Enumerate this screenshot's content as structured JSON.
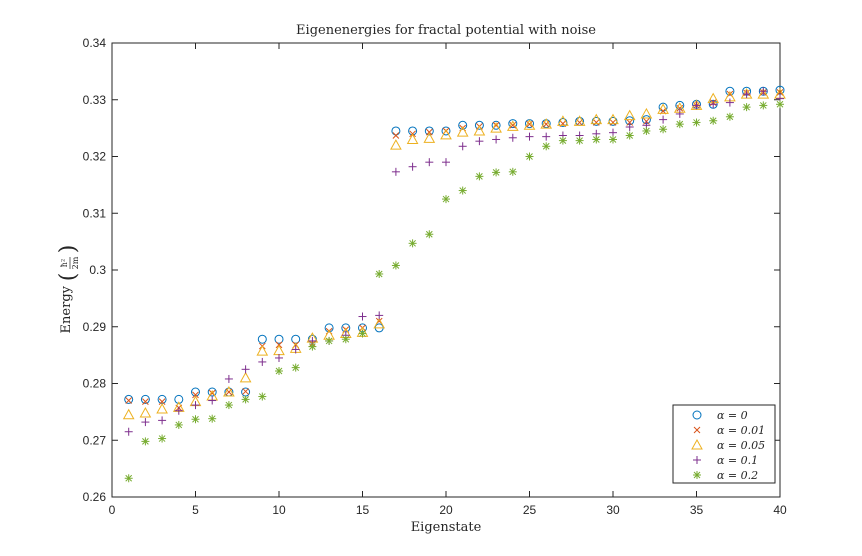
{
  "chart_data": {
    "type": "scatter",
    "title": "Eigenenergies for fractal potential with noise",
    "xlabel": "Eigenstate",
    "ylabel": "Energy",
    "ylabel_unit_num": "ħ²",
    "ylabel_unit_den": "2m",
    "xlim": [
      0,
      40
    ],
    "ylim": [
      0.26,
      0.34
    ],
    "xticks": [
      0,
      5,
      10,
      15,
      20,
      25,
      30,
      35,
      40
    ],
    "yticks": [
      0.26,
      0.27,
      0.28,
      0.29,
      0.3,
      0.31,
      0.32,
      0.33,
      0.34
    ],
    "grid": false,
    "legend_position": "bottom-right",
    "x": [
      1,
      2,
      3,
      4,
      5,
      6,
      7,
      8,
      9,
      10,
      11,
      12,
      13,
      14,
      15,
      16,
      17,
      18,
      19,
      20,
      21,
      22,
      23,
      24,
      25,
      26,
      27,
      28,
      29,
      30,
      31,
      32,
      33,
      34,
      35,
      36,
      37,
      38,
      39,
      40
    ],
    "series": [
      {
        "name": "α = 0",
        "marker": "circle",
        "color": "#0072BD",
        "values": [
          0.2772,
          0.2772,
          0.2772,
          0.2772,
          0.2785,
          0.2785,
          0.2785,
          0.2785,
          0.2878,
          0.2878,
          0.2878,
          0.2878,
          0.2898,
          0.2898,
          0.2898,
          0.2898,
          0.3245,
          0.3245,
          0.3245,
          0.3245,
          0.3255,
          0.3255,
          0.3255,
          0.3258,
          0.3258,
          0.3258,
          0.326,
          0.3262,
          0.3262,
          0.3262,
          0.3263,
          0.3265,
          0.3287,
          0.329,
          0.3292,
          0.3292,
          0.3315,
          0.3315,
          0.3315,
          0.3317
        ]
      },
      {
        "name": "α = 0.01",
        "marker": "x",
        "color": "#D95319",
        "values": [
          0.277,
          0.2768,
          0.2768,
          0.2757,
          0.278,
          0.2783,
          0.2785,
          0.2786,
          0.2866,
          0.2868,
          0.2868,
          0.287,
          0.2892,
          0.2895,
          0.2898,
          0.291,
          0.3237,
          0.324,
          0.3243,
          0.3245,
          0.325,
          0.3253,
          0.3255,
          0.3255,
          0.3257,
          0.3257,
          0.3258,
          0.326,
          0.326,
          0.326,
          0.326,
          0.3262,
          0.328,
          0.3285,
          0.329,
          0.3295,
          0.331,
          0.3312,
          0.3313,
          0.3313
        ]
      },
      {
        "name": "α = 0.05",
        "marker": "triangle",
        "color": "#EDB120",
        "values": [
          0.2745,
          0.2748,
          0.2755,
          0.2758,
          0.2768,
          0.2778,
          0.2785,
          0.281,
          0.2857,
          0.2858,
          0.2862,
          0.288,
          0.2885,
          0.2888,
          0.289,
          0.2905,
          0.322,
          0.323,
          0.3232,
          0.3238,
          0.3243,
          0.3245,
          0.325,
          0.3253,
          0.3255,
          0.3257,
          0.3262,
          0.3262,
          0.3265,
          0.3265,
          0.3272,
          0.3275,
          0.3283,
          0.3285,
          0.329,
          0.3302,
          0.3305,
          0.331,
          0.331,
          0.331
        ]
      },
      {
        "name": "α = 0.1",
        "marker": "plus",
        "color": "#7E2F8E",
        "values": [
          0.2715,
          0.2732,
          0.2735,
          0.2752,
          0.2762,
          0.277,
          0.2808,
          0.2825,
          0.2838,
          0.2845,
          0.286,
          0.2875,
          0.2875,
          0.2885,
          0.2918,
          0.292,
          0.3173,
          0.3182,
          0.319,
          0.319,
          0.3218,
          0.3227,
          0.323,
          0.3233,
          0.3235,
          0.3235,
          0.3237,
          0.3237,
          0.324,
          0.3242,
          0.3252,
          0.3255,
          0.3265,
          0.3275,
          0.329,
          0.3292,
          0.3295,
          0.331,
          0.3315,
          0.3302
        ]
      },
      {
        "name": "α = 0.2",
        "marker": "star",
        "color": "#77AC30",
        "values": [
          0.2633,
          0.2698,
          0.2703,
          0.2727,
          0.2737,
          0.2738,
          0.2762,
          0.2772,
          0.2777,
          0.2822,
          0.2828,
          0.2865,
          0.2875,
          0.2878,
          0.2888,
          0.2993,
          0.3008,
          0.3047,
          0.3063,
          0.3125,
          0.314,
          0.3165,
          0.3172,
          0.3173,
          0.32,
          0.3218,
          0.3228,
          0.3228,
          0.323,
          0.323,
          0.3237,
          0.3245,
          0.3248,
          0.3257,
          0.326,
          0.3263,
          0.327,
          0.3287,
          0.329,
          0.3292
        ]
      }
    ]
  }
}
